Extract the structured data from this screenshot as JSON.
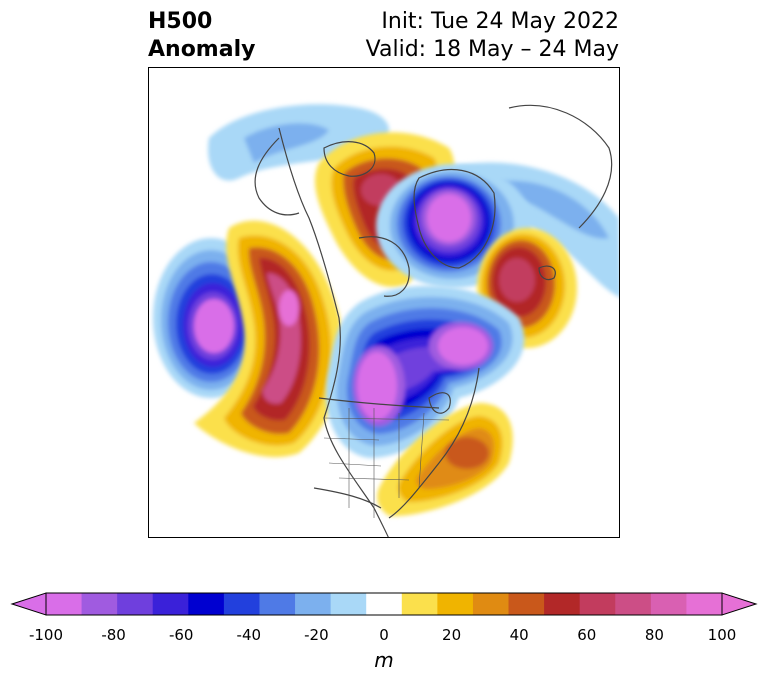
{
  "header": {
    "left_line1": "H500",
    "left_line2": "Anomaly",
    "right_line1": "Init: Tue 24 May 2022",
    "right_line2": "Valid: 18 May – 24 May"
  },
  "colorbar": {
    "unit": "m",
    "tick_labels": [
      "-100",
      "-80",
      "-60",
      "-40",
      "-20",
      "0",
      "20",
      "40",
      "60",
      "80",
      "100"
    ],
    "colors": [
      "#d96ee8",
      "#a05be0",
      "#6f3fdd",
      "#3a21d9",
      "#0000d0",
      "#2240dd",
      "#4f7ae6",
      "#7cb0ee",
      "#a9d8f7",
      "#ffffff",
      "#fbe04c",
      "#f0b400",
      "#e08b12",
      "#c9581b",
      "#b22828",
      "#c23c5e",
      "#cc4e86",
      "#d960b2",
      "#e670d6"
    ]
  },
  "map": {
    "projection": "polar-stereographic",
    "region": "North America / Arctic"
  }
}
